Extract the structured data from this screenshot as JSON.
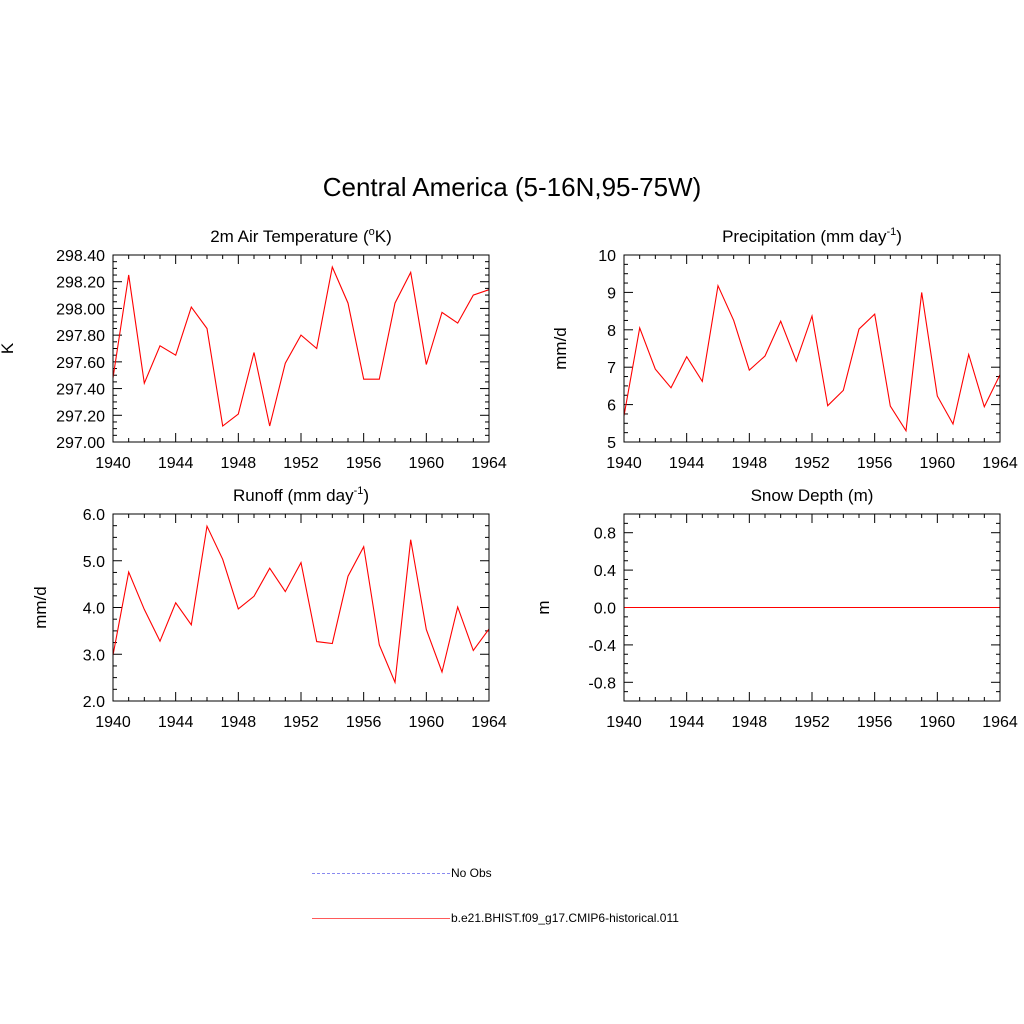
{
  "figure": {
    "title": "Central America (5-16N,95-75W)"
  },
  "legend": {
    "entries": [
      {
        "label": "No Obs",
        "style": "dashed",
        "color": "#8a8af0"
      },
      {
        "label": "b.e21.BHIST.f09_g17.CMIP6-historical.011",
        "style": "solid",
        "color": "#ff5a5a"
      }
    ]
  },
  "chart_data": [
    {
      "type": "line",
      "title": "2m Air Temperature (",
      "title_super": "o",
      "title_suffix": "K)",
      "ylabel": "K",
      "xlim": [
        1940,
        1964
      ],
      "ylim": [
        297.0,
        298.4
      ],
      "xticks": [
        "1940",
        "1944",
        "1948",
        "1952",
        "1956",
        "1960",
        "1964"
      ],
      "yticks": [
        "297.00",
        "297.20",
        "297.40",
        "297.60",
        "297.80",
        "298.00",
        "298.20",
        "298.40"
      ],
      "series": [
        {
          "color": "#ff0000",
          "x": [
            1940,
            1941,
            1942,
            1943,
            1944,
            1945,
            1946,
            1947,
            1948,
            1949,
            1950,
            1951,
            1952,
            1953,
            1954,
            1955,
            1956,
            1957,
            1958,
            1959,
            1960,
            1961,
            1962,
            1963,
            1964
          ],
          "values": [
            297.48,
            298.25,
            297.44,
            297.72,
            297.65,
            298.01,
            297.85,
            297.12,
            297.21,
            297.67,
            297.12,
            297.59,
            297.8,
            297.7,
            298.31,
            298.04,
            297.47,
            297.47,
            298.04,
            298.27,
            297.58,
            297.97,
            297.89,
            298.1,
            298.14
          ]
        }
      ]
    },
    {
      "type": "line",
      "title": "Precipitation (mm day",
      "title_super": "-1",
      "title_suffix": ")",
      "ylabel": "mm/d",
      "xlim": [
        1940,
        1964
      ],
      "ylim": [
        5,
        10
      ],
      "xticks": [
        "1940",
        "1944",
        "1948",
        "1952",
        "1956",
        "1960",
        "1964"
      ],
      "yticks": [
        "5",
        "6",
        "7",
        "8",
        "9",
        "10"
      ],
      "series": [
        {
          "color": "#ff0000",
          "x": [
            1940,
            1941,
            1942,
            1943,
            1944,
            1945,
            1946,
            1947,
            1948,
            1949,
            1950,
            1951,
            1952,
            1953,
            1954,
            1955,
            1956,
            1957,
            1958,
            1959,
            1960,
            1961,
            1962,
            1963,
            1964
          ],
          "values": [
            5.7,
            8.05,
            6.95,
            6.45,
            7.28,
            6.62,
            9.18,
            8.25,
            6.92,
            7.3,
            8.23,
            7.16,
            8.37,
            5.97,
            6.38,
            8.02,
            8.42,
            5.96,
            5.3,
            9.0,
            6.23,
            5.48,
            7.34,
            5.94,
            6.8
          ]
        }
      ]
    },
    {
      "type": "line",
      "title": "Runoff (mm day",
      "title_super": "-1",
      "title_suffix": ")",
      "ylabel": "mm/d",
      "xlim": [
        1940,
        1964
      ],
      "ylim": [
        2.0,
        6.0
      ],
      "xticks": [
        "1940",
        "1944",
        "1948",
        "1952",
        "1956",
        "1960",
        "1964"
      ],
      "yticks": [
        "2.0",
        "3.0",
        "4.0",
        "5.0",
        "6.0"
      ],
      "series": [
        {
          "color": "#ff0000",
          "x": [
            1940,
            1941,
            1942,
            1943,
            1944,
            1945,
            1946,
            1947,
            1948,
            1949,
            1950,
            1951,
            1952,
            1953,
            1954,
            1955,
            1956,
            1957,
            1958,
            1959,
            1960,
            1961,
            1962,
            1963,
            1964
          ],
          "values": [
            2.98,
            4.76,
            3.96,
            3.28,
            4.1,
            3.63,
            5.74,
            5.03,
            3.97,
            4.24,
            4.84,
            4.34,
            4.96,
            3.27,
            3.23,
            4.67,
            5.3,
            3.2,
            2.4,
            5.45,
            3.53,
            2.62,
            4.01,
            3.08,
            3.54
          ]
        }
      ]
    },
    {
      "type": "line",
      "title": "Snow Depth (m)",
      "title_super": "",
      "title_suffix": "",
      "ylabel": "m",
      "xlim": [
        1940,
        1964
      ],
      "ylim": [
        -1.0,
        1.0
      ],
      "xticks": [
        "1940",
        "1944",
        "1948",
        "1952",
        "1956",
        "1960",
        "1964"
      ],
      "yticks": [
        "-0.8",
        "-0.4",
        "0.0",
        "0.4",
        "0.8"
      ],
      "series": [
        {
          "color": "#ff0000",
          "x": [
            1940,
            1964
          ],
          "values": [
            0.0,
            0.0
          ]
        }
      ]
    }
  ]
}
